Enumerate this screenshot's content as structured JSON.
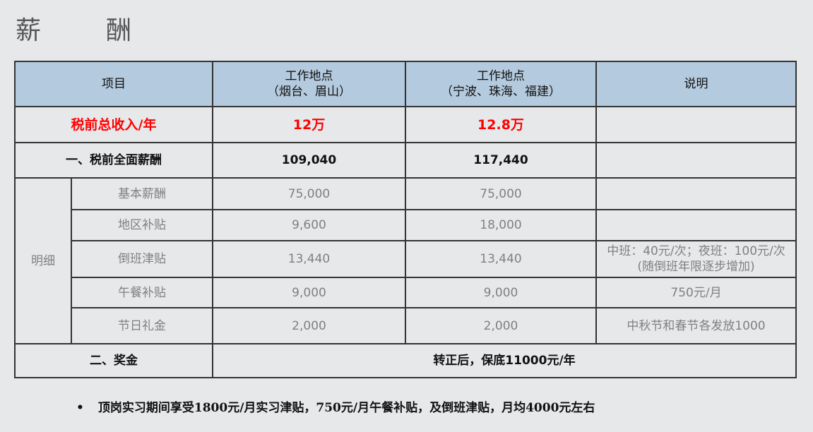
{
  "title": "薪　酬",
  "table": {
    "headers": [
      "项目",
      "工作地点\n（烟台、眉山）",
      "工作地点\n（宁波、珠海、福建）",
      "说明"
    ],
    "header_lines": [
      [
        "项目"
      ],
      [
        "工作地点",
        "（烟台、眉山）"
      ],
      [
        "工作地点",
        "（宁波、珠海、福建）"
      ],
      [
        "说明"
      ]
    ],
    "total": {
      "label": "税前总收入/年",
      "a": "12万",
      "b": "12.8万",
      "note": ""
    },
    "comp": {
      "label": "一、税前全面薪酬",
      "a": "109,040",
      "b": "117,440",
      "note": ""
    },
    "detail_group": "明细",
    "details": [
      {
        "label": "基本薪酬",
        "a": "75,000",
        "b": "75,000",
        "note": ""
      },
      {
        "label": "地区补贴",
        "a": "9,600",
        "b": "18,000",
        "note": ""
      },
      {
        "label": "倒班津贴",
        "a": "13,440",
        "b": "13,440",
        "note": "中班：40元/次；夜班：100元/次",
        "note2": "(随倒班年限逐步增加)"
      },
      {
        "label": "午餐补贴",
        "a": "9,000",
        "b": "9,000",
        "note": "750元/月"
      },
      {
        "label": "节日礼金",
        "a": "2,000",
        "b": "2,000",
        "note": "中秋节和春节各发放1000"
      }
    ],
    "bonus": {
      "label": "二、奖金",
      "value": "转正后，保底11000元/年"
    }
  },
  "footnote": {
    "bullet": "•",
    "text": "顶岗实习期间享受1800元/月实习津贴，750元/月午餐补贴，及倒班津贴，月均4000元左右"
  },
  "colors": {
    "background": "#e7e8ea",
    "header": "#b4cade",
    "highlight": "#ff0000",
    "detail_text": "#808080"
  }
}
